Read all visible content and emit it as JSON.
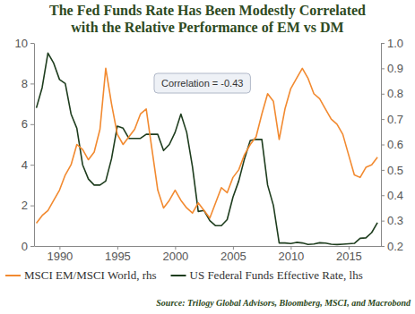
{
  "chart_data": {
    "type": "line",
    "title": [
      "The Fed Funds Rate Has Been Modestly Correlated",
      "with the Relative Performance of EM vs DM"
    ],
    "annotation": "Correlation = -0.43",
    "source": "Source: Trilogy Global Advisors, Bloomberg, MSCI, and Macrobond",
    "legend": "bottom",
    "grid": false,
    "xlim": [
      1987.8,
      2017.8
    ],
    "xticks": [
      1990,
      1995,
      2000,
      2005,
      2010,
      2015
    ],
    "ylim": [
      0,
      10
    ],
    "yticks": [
      0,
      2,
      4,
      6,
      8,
      10
    ],
    "y2lim": [
      0.2,
      1.0
    ],
    "y2ticks": [
      0.2,
      0.3,
      0.4,
      0.5,
      0.6,
      0.7,
      0.8,
      0.9,
      {
        "value": 1.0,
        "label": "1.0"
      }
    ],
    "x": [
      1988,
      1988.5,
      1989,
      1989.5,
      1990,
      1990.5,
      1991,
      1991.5,
      1992,
      1992.5,
      1993,
      1993.5,
      1994,
      1994.5,
      1995,
      1995.5,
      1996,
      1996.5,
      1997,
      1997.5,
      1998,
      1998.5,
      1999,
      1999.5,
      2000,
      2000.5,
      2001,
      2001.5,
      2002,
      2002.5,
      2003,
      2003.5,
      2004,
      2004.5,
      2005,
      2005.5,
      2006,
      2006.5,
      2007,
      2007.5,
      2008,
      2008.5,
      2009,
      2009.5,
      2010,
      2010.5,
      2011,
      2011.5,
      2012,
      2012.5,
      2013,
      2013.5,
      2014,
      2014.5,
      2015,
      2015.5,
      2016,
      2016.5,
      2017,
      2017.5
    ],
    "series": [
      {
        "name": "MSCI EM/MSCI World, rhs",
        "color": "#f28a30",
        "axis": "y2",
        "values": [
          0.29,
          0.32,
          0.34,
          0.38,
          0.42,
          0.48,
          0.52,
          0.6,
          0.58,
          0.54,
          0.57,
          0.66,
          0.9,
          0.76,
          0.64,
          0.6,
          0.63,
          0.66,
          0.72,
          0.74,
          0.58,
          0.42,
          0.35,
          0.38,
          0.42,
          0.38,
          0.35,
          0.33,
          0.37,
          0.34,
          0.31,
          0.37,
          0.43,
          0.41,
          0.47,
          0.5,
          0.56,
          0.6,
          0.63,
          0.72,
          0.8,
          0.77,
          0.62,
          0.74,
          0.82,
          0.86,
          0.9,
          0.86,
          0.8,
          0.78,
          0.74,
          0.7,
          0.68,
          0.64,
          0.56,
          0.48,
          0.47,
          0.51,
          0.52,
          0.55
        ]
      },
      {
        "name": "US Federal Funds Effective Rate, lhs",
        "color": "#1e3d1e",
        "values": [
          6.8,
          7.8,
          9.5,
          9.0,
          8.2,
          8.0,
          6.5,
          5.8,
          4.0,
          3.3,
          3.0,
          3.0,
          3.2,
          4.3,
          5.9,
          5.8,
          5.3,
          5.3,
          5.3,
          5.5,
          5.5,
          5.5,
          4.7,
          5.0,
          5.6,
          6.5,
          5.6,
          3.9,
          1.7,
          1.75,
          1.25,
          1.0,
          1.0,
          1.3,
          2.4,
          3.2,
          4.3,
          5.2,
          5.25,
          5.25,
          3.0,
          2.0,
          0.15,
          0.15,
          0.12,
          0.18,
          0.15,
          0.08,
          0.1,
          0.16,
          0.14,
          0.09,
          0.07,
          0.09,
          0.11,
          0.13,
          0.38,
          0.4,
          0.66,
          1.15
        ]
      }
    ]
  }
}
